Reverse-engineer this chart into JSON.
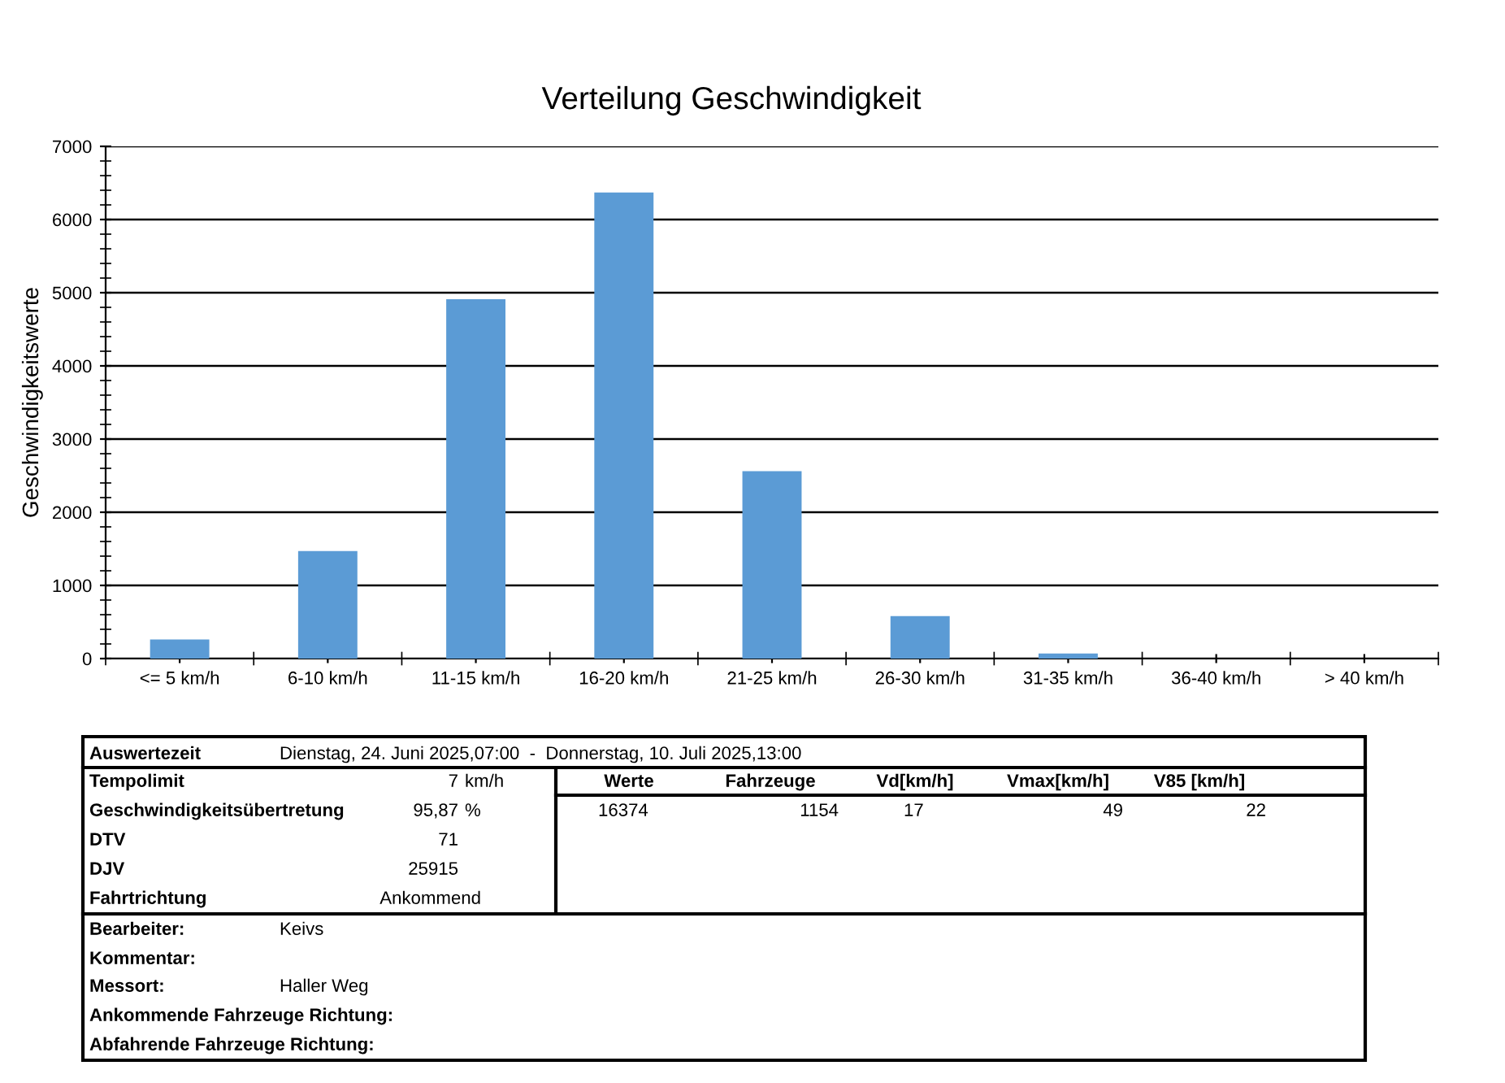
{
  "chart_data": {
    "type": "bar",
    "title": "Verteilung Geschwindigkeit",
    "ylabel": "Geschwindigkeitswerte",
    "categories": [
      "<= 5 km/h",
      "6-10 km/h",
      "11-15 km/h",
      "16-20 km/h",
      "21-25 km/h",
      "26-30 km/h",
      "31-35 km/h",
      "36-40 km/h",
      "> 40 km/h"
    ],
    "values": [
      260,
      1470,
      4910,
      6370,
      2560,
      580,
      70,
      0,
      0
    ],
    "color": "#5b9bd5",
    "ylim": [
      0,
      7000
    ],
    "yticks": [
      0,
      1000,
      2000,
      3000,
      4000,
      5000,
      6000,
      7000
    ],
    "grid": "y",
    "legend": false,
    "annotations": [
      "Auswertezeit",
      "Dienstag, 24. Juni 2025,07:00  -  Donnerstag, 10. Juli 2025,13:00",
      "Tempolimit",
      "7",
      "km/h",
      "Geschwindigkeitsübertretung",
      "95,87",
      "%",
      "DTV",
      "71",
      "DJV",
      "25915",
      "Fahrtrichtung",
      "Ankommend",
      "Werte",
      "Fahrzeuge",
      "Vd[km/h]",
      "Vmax[km/h]",
      "V85 [km/h]",
      "16374",
      "1154",
      "17",
      "49",
      "22",
      "Bearbeiter:",
      "Keivs",
      "Kommentar:",
      "Messort:",
      "Haller Weg",
      "Ankommende Fahrzeuge Richtung:",
      "Abfahrende Fahrzeuge Richtung:"
    ]
  }
}
